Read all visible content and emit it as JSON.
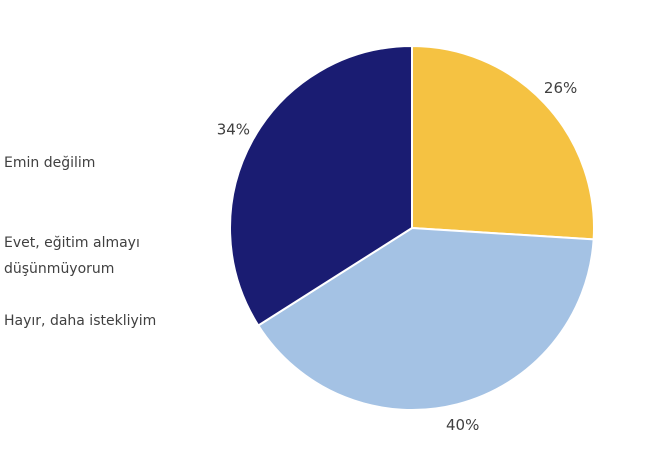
{
  "chart_data": {
    "type": "pie",
    "categories": [
      "Emin değilim",
      "Evet, eğitim almayı düşünmüyorum",
      "Hayır, daha istekliyim"
    ],
    "values": [
      26,
      40,
      34
    ],
    "value_labels": [
      "26%",
      "40%",
      "34%"
    ],
    "colors": [
      "#f5c242",
      "#a4c2e4",
      "#1a1c72"
    ],
    "legend": "left"
  }
}
